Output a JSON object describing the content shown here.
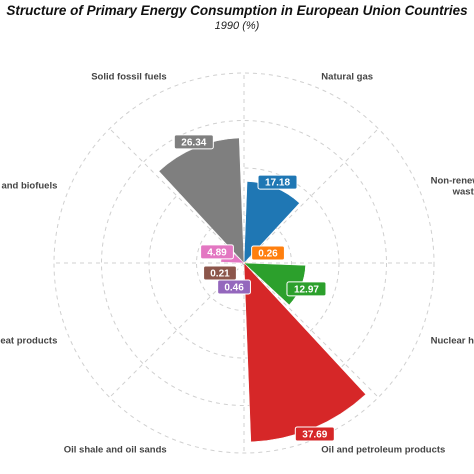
{
  "chart_data": {
    "type": "polar-bar",
    "title": "Structure of Primary Energy Consumption in European Union Countries",
    "subtitle": "1990 (%)",
    "categories": [
      "Natural gas",
      "Non-renewable waste",
      "Nuclear heat",
      "Oil and petroleum products",
      "Oil shale and oil sands",
      "Peat and peat products",
      "Renewables and biofuels",
      "Solid fossil fuels"
    ],
    "values": [
      17.18,
      0.26,
      12.97,
      37.69,
      0.46,
      0.21,
      4.89,
      26.34
    ],
    "colors": [
      "#1f77b4",
      "#ff7f0e",
      "#2ca02c",
      "#d62728",
      "#9467bd",
      "#8c564b",
      "#e377c2",
      "#7f7f7f"
    ],
    "rmax": 40,
    "grid": true
  }
}
